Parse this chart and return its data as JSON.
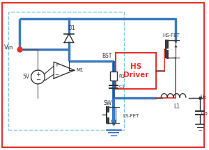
{
  "bg_color": "#ffffff",
  "red_color": "#e8302a",
  "blue_color": "#3d7abf",
  "dark_color": "#333333",
  "gray_color": "#555555",
  "dashed_color": "#7ec8e3",
  "labels": {
    "vin": "Vin",
    "5v": "5V",
    "d1": "D1",
    "m1": "M1",
    "r1": "R1",
    "c1": "C1",
    "bst": "BST",
    "sw": "SW",
    "hs_fet": "HS-FET",
    "ls_fet": "LS-FET",
    "l1": "L1",
    "co": "Co",
    "vo": "Vo",
    "hs_driver": "HS\nDriver"
  }
}
